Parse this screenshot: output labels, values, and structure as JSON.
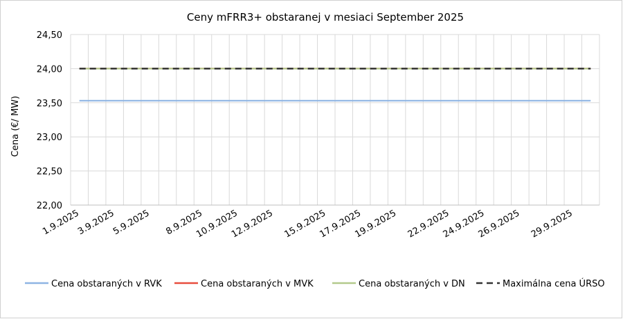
{
  "chart_data": {
    "type": "line",
    "title": "Ceny mFRR3+ obstaranej v mesiaci September 2025",
    "y_label": "Cena (€/ MW)",
    "categories": [
      "1.9.2025",
      null,
      "3.9.2025",
      null,
      "5.9.2025",
      null,
      null,
      "8.9.2025",
      null,
      "10.9.2025",
      null,
      "12.9.2025",
      null,
      null,
      "15.9.2025",
      null,
      "17.9.2025",
      null,
      "19.9.2025",
      null,
      null,
      "22.9.2025",
      null,
      "24.9.2025",
      null,
      "26.9.2025",
      null,
      null,
      "29.9.2025",
      null
    ],
    "series": [
      {
        "name": "Cena obstaraných v RVK",
        "color": "#8eb4e3",
        "dash": false,
        "values": [
          23.53,
          23.53,
          23.53,
          23.53,
          23.53,
          23.53,
          23.53,
          23.53,
          23.53,
          23.53,
          23.53,
          23.53,
          23.53,
          23.53,
          23.53,
          23.53,
          23.53,
          23.53,
          23.53,
          23.53,
          23.53,
          23.53,
          23.53,
          23.53,
          23.53,
          23.53,
          23.53,
          23.53,
          23.53,
          23.53
        ]
      },
      {
        "name": "Cena obstaraných v MVK",
        "color": "#e84c3d",
        "dash": false,
        "values": [
          24,
          24,
          24,
          24,
          24,
          24,
          24,
          24,
          24,
          24,
          24,
          24,
          24,
          24,
          24,
          24,
          24,
          24,
          24,
          24,
          24,
          24,
          24,
          24,
          24,
          24,
          24,
          24,
          24,
          24
        ]
      },
      {
        "name": "Cena obstaraných v DN",
        "color": "#b3c98b",
        "dash": false,
        "values": [
          24,
          24,
          24,
          24,
          24,
          24,
          24,
          24,
          24,
          24,
          24,
          24,
          24,
          24,
          24,
          24,
          24,
          24,
          24,
          24,
          24,
          24,
          24,
          24,
          24,
          24,
          24,
          24,
          24,
          24
        ]
      },
      {
        "name": "Maximálna cena ÚRSO",
        "color": "#333333",
        "dash": true,
        "values": [
          24,
          24,
          24,
          24,
          24,
          24,
          24,
          24,
          24,
          24,
          24,
          24,
          24,
          24,
          24,
          24,
          24,
          24,
          24,
          24,
          24,
          24,
          24,
          24,
          24,
          24,
          24,
          24,
          24,
          24
        ]
      }
    ],
    "ylim": [
      22,
      24.5
    ],
    "yticks": [
      {
        "value": 22,
        "label": "22,00"
      },
      {
        "value": 22.5,
        "label": "22,50"
      },
      {
        "value": 23,
        "label": "23,00"
      },
      {
        "value": 23.5,
        "label": "23,50"
      },
      {
        "value": 24,
        "label": "24,00"
      },
      {
        "value": 24.5,
        "label": "24,50"
      }
    ],
    "grid": true,
    "legend": "bottom"
  }
}
